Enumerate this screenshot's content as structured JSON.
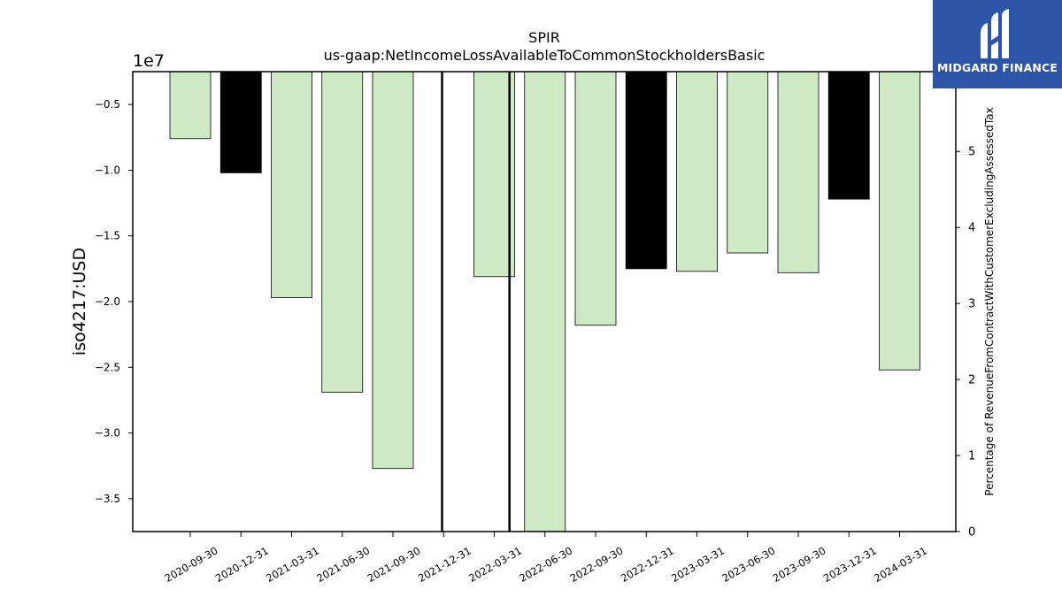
{
  "chart_data": {
    "type": "bar",
    "title": "SPIR",
    "subtitle": "us-gaap:NetIncomeLossAvailableToCommonStockholdersBasic",
    "ylabel": "iso4217:USD",
    "y_offset_label": "1e7",
    "y2label": "Percentage of RevenueFromContractWithCustomerExcludingAssessedTax",
    "ylim": [
      -3.75,
      -0.25
    ],
    "y_scale": "1e7",
    "y_ticks": [
      -0.5,
      -1.0,
      -1.5,
      -2.0,
      -2.5,
      -3.0,
      -3.5
    ],
    "y_tick_labels": [
      "−0.5",
      "−1.0",
      "−1.5",
      "−2.0",
      "−2.5",
      "−3.0",
      "−3.5"
    ],
    "y2lim": [
      0,
      6.05
    ],
    "y2_ticks": [
      0,
      1,
      2,
      3,
      4,
      5
    ],
    "y2_tick_labels": [
      "0",
      "1",
      "2",
      "3",
      "4",
      "5"
    ],
    "categories": [
      "2020-09-30",
      "2020-12-31",
      "2021-03-31",
      "2021-06-30",
      "2021-09-30",
      "2021-12-31",
      "2022-03-31",
      "2022-06-30",
      "2022-09-30",
      "2022-12-31",
      "2023-03-31",
      "2023-06-30",
      "2023-09-30",
      "2023-12-31",
      "2024-03-31"
    ],
    "values": [
      -0.76,
      -1.02,
      -1.97,
      -2.69,
      -3.27,
      null,
      -1.81,
      -3.75,
      -2.18,
      -1.75,
      -1.77,
      -1.63,
      -1.78,
      -1.22,
      -2.52
    ],
    "bar_colors": [
      "#cdeac5",
      "#000000",
      "#cdeac5",
      "#cdeac5",
      "#cdeac5",
      null,
      "#cdeac5",
      "#cdeac5",
      "#cdeac5",
      "#000000",
      "#cdeac5",
      "#cdeac5",
      "#cdeac5",
      "#000000",
      "#cdeac5"
    ],
    "vertical_lines": [
      4.97,
      6.3
    ],
    "grid": false,
    "legend": "none"
  },
  "logo": {
    "text": "MIDGARD FINANCE",
    "background": "#2c55a8"
  }
}
